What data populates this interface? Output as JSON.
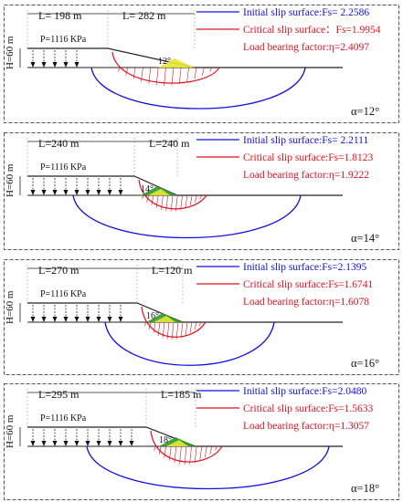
{
  "panels": [
    {
      "L_left": "L= 198 m",
      "L_right": "L= 282 m",
      "H": "H=60 m",
      "P": "P=1116 KPa",
      "angle": "12°",
      "alpha": "α=12°",
      "legend": [
        "Initial slip surface:Fs= 2.2586",
        "Critical slip surface：Fs=1.9954",
        "Load bearing factor:η=2.4097"
      ]
    },
    {
      "L_left": "L=240 m",
      "L_right": "L=240 m",
      "H": "H=60 m",
      "P": "P=1116 KPa",
      "angle": "14°",
      "alpha": "α=14°",
      "legend": [
        "Initial slip surface:Fs= 2.2111",
        "Critical slip surface:Fs=1.8123",
        "Load bearing factor:η=1.9222"
      ]
    },
    {
      "L_left": "L=270 m",
      "L_right": "L=120 m",
      "H": "H=60 m",
      "P": "P=1116 KPa",
      "angle": "16°",
      "alpha": "α=16°",
      "legend": [
        "Initial slip surface:Fs=2.1395",
        "Critical slip surface:Fs=1.6741",
        "Load bearing factor:η=1.6078"
      ]
    },
    {
      "L_left": "L=295 m",
      "L_right": "L=185 m",
      "H": "H=60 m",
      "P": "P=1116 KPa",
      "angle": "18°",
      "alpha": "α=18°",
      "legend": [
        "Initial slip surface:Fs=2.0480",
        "Critical slip surface:Fs=1.5633",
        "Load bearing factor:η=1.3057"
      ]
    }
  ],
  "colors": {
    "initial": "#1010e0",
    "critical": "#e01020",
    "text_red": "#e01020",
    "frame": "#555555",
    "yellow": "#e8e830",
    "green": "#2a9a2a"
  }
}
